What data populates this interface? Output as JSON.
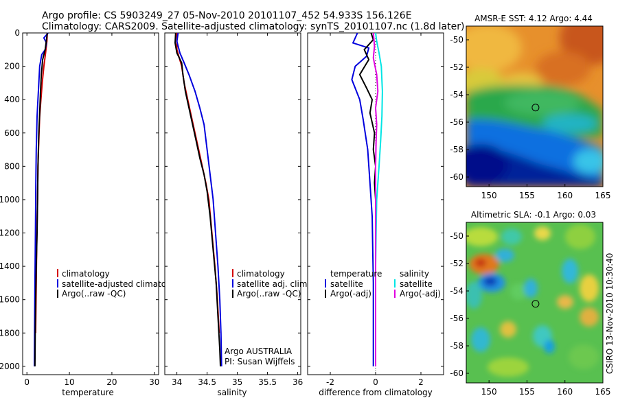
{
  "header": {
    "line1": "Argo profile: CS 5903249_27 05-Nov-2010 20101107_452 54.933S 156.126E",
    "line2": "Climatology: CARS2009. Satellite-adjusted climatology: synTS_20101107.nc (1.8d later)"
  },
  "side_label": "CSIRO 13-Nov-2010 10:30:40",
  "colors": {
    "climatology": "#d40000",
    "satellite": "#0000dd",
    "argo": "#000000",
    "sal_satellite": "#00e5e5",
    "sal_argo": "#e000e0"
  },
  "chart_data": [
    {
      "type": "line",
      "title": "",
      "xlabel": "temperature",
      "ylabel": "",
      "xlim": [
        -1,
        31
      ],
      "ylim": [
        2050,
        0
      ],
      "xticks": [
        "0",
        "10",
        "20",
        "30"
      ],
      "yticks": [
        "0",
        "200",
        "400",
        "600",
        "800",
        "1000",
        "1200",
        "1400",
        "1600",
        "1800",
        "2000"
      ],
      "legend": {
        "position": "bottom-right",
        "entries": [
          "climatology",
          "satellite-adjusted climatology",
          "Argo(..raw -QC)"
        ]
      },
      "series": [
        {
          "key": "climatology",
          "color": "#d40000",
          "points": [
            [
              4.8,
              0
            ],
            [
              4.7,
              50
            ],
            [
              4.4,
              120
            ],
            [
              4.0,
              200
            ],
            [
              3.6,
              300
            ],
            [
              3.3,
              400
            ],
            [
              3.0,
              500
            ],
            [
              2.8,
              650
            ],
            [
              2.6,
              800
            ],
            [
              2.5,
              1000
            ],
            [
              2.35,
              1200
            ],
            [
              2.25,
              1400
            ],
            [
              2.15,
              1600
            ],
            [
              2.05,
              1800
            ]
          ]
        },
        {
          "key": "satellite",
          "color": "#0000dd",
          "points": [
            [
              5.0,
              0
            ],
            [
              4.0,
              30
            ],
            [
              4.6,
              60
            ],
            [
              4.3,
              100
            ],
            [
              3.5,
              130
            ],
            [
              3.0,
              200
            ],
            [
              2.7,
              350
            ],
            [
              2.4,
              500
            ],
            [
              2.2,
              700
            ],
            [
              2.1,
              900
            ],
            [
              2.0,
              1200
            ],
            [
              1.9,
              1500
            ],
            [
              1.8,
              1800
            ],
            [
              1.75,
              2000
            ]
          ]
        },
        {
          "key": "argo",
          "color": "#000000",
          "points": [
            [
              4.8,
              0
            ],
            [
              4.6,
              40
            ],
            [
              4.3,
              100
            ],
            [
              3.7,
              160
            ],
            [
              3.4,
              250
            ],
            [
              3.2,
              350
            ],
            [
              3.0,
              480
            ],
            [
              2.8,
              600
            ],
            [
              2.6,
              800
            ],
            [
              2.5,
              1000
            ],
            [
              2.4,
              1200
            ],
            [
              2.2,
              1400
            ],
            [
              2.05,
              1600
            ],
            [
              1.95,
              1800
            ],
            [
              1.9,
              2000
            ]
          ]
        }
      ]
    },
    {
      "type": "line",
      "title": "",
      "xlabel": "salinity",
      "ylabel": "",
      "xlim": [
        33.8,
        36.05
      ],
      "ylim": [
        2050,
        0
      ],
      "xticks": [
        "34",
        "34.5",
        "35",
        "35.5",
        "36"
      ],
      "legend": {
        "position": "bottom-right",
        "entries": [
          "climatology",
          "satellite adj. clim.",
          "Argo(..raw -QC)"
        ]
      },
      "annotations": [
        "Argo AUSTRALIA",
        "PI: Susan Wijffels"
      ],
      "series": [
        {
          "key": "climatology",
          "color": "#d40000",
          "points": [
            [
              34.0,
              0
            ],
            [
              34.0,
              100
            ],
            [
              34.08,
              200
            ],
            [
              34.12,
              300
            ],
            [
              34.18,
              400
            ],
            [
              34.24,
              500
            ],
            [
              34.3,
              600
            ],
            [
              34.36,
              700
            ],
            [
              34.42,
              800
            ],
            [
              34.48,
              900
            ],
            [
              34.53,
              1000
            ],
            [
              34.58,
              1200
            ],
            [
              34.63,
              1400
            ],
            [
              34.67,
              1600
            ],
            [
              34.7,
              1800
            ]
          ]
        },
        {
          "key": "satellite",
          "color": "#0000dd",
          "points": [
            [
              34.02,
              0
            ],
            [
              34.0,
              50
            ],
            [
              34.05,
              120
            ],
            [
              34.12,
              180
            ],
            [
              34.2,
              250
            ],
            [
              34.3,
              350
            ],
            [
              34.38,
              450
            ],
            [
              34.45,
              550
            ],
            [
              34.5,
              700
            ],
            [
              34.55,
              850
            ],
            [
              34.6,
              1000
            ],
            [
              34.64,
              1200
            ],
            [
              34.68,
              1400
            ],
            [
              34.71,
              1600
            ],
            [
              34.73,
              1800
            ],
            [
              34.74,
              2000
            ]
          ]
        },
        {
          "key": "argo",
          "color": "#000000",
          "points": [
            [
              33.98,
              0
            ],
            [
              33.97,
              60
            ],
            [
              34.0,
              120
            ],
            [
              34.08,
              180
            ],
            [
              34.1,
              250
            ],
            [
              34.14,
              350
            ],
            [
              34.2,
              450
            ],
            [
              34.26,
              550
            ],
            [
              34.32,
              650
            ],
            [
              34.38,
              750
            ],
            [
              34.45,
              850
            ],
            [
              34.5,
              950
            ],
            [
              34.55,
              1100
            ],
            [
              34.6,
              1300
            ],
            [
              34.65,
              1500
            ],
            [
              34.68,
              1700
            ],
            [
              34.71,
              1900
            ],
            [
              34.72,
              2000
            ]
          ]
        }
      ]
    },
    {
      "type": "line",
      "title": "",
      "xlabel": "difference from climatology",
      "ylabel": "",
      "xlim": [
        -3,
        3
      ],
      "ylim": [
        2050,
        0
      ],
      "xticks": [
        "-2",
        "0",
        "2"
      ],
      "legend": {
        "position": "bottom",
        "groups": [
          {
            "title": "temperature",
            "entries": [
              "satellite",
              "Argo(-adj)"
            ]
          },
          {
            "title": "salinity",
            "entries": [
              "satellite",
              "Argo(-adj)"
            ]
          }
        ]
      },
      "series": [
        {
          "key": "temp_satellite",
          "color": "#0000dd",
          "points": [
            [
              -0.8,
              0
            ],
            [
              -1.0,
              60
            ],
            [
              -0.3,
              90
            ],
            [
              -0.4,
              140
            ],
            [
              -0.9,
              200
            ],
            [
              -1.05,
              280
            ],
            [
              -0.7,
              400
            ],
            [
              -0.55,
              520
            ],
            [
              -0.35,
              700
            ],
            [
              -0.25,
              900
            ],
            [
              -0.15,
              1100
            ],
            [
              -0.1,
              1500
            ],
            [
              -0.1,
              2000
            ]
          ]
        },
        {
          "key": "temp_argo",
          "color": "#000000",
          "points": [
            [
              -0.2,
              0
            ],
            [
              -0.1,
              40
            ],
            [
              -0.5,
              100
            ],
            [
              -0.3,
              160
            ],
            [
              -0.7,
              250
            ],
            [
              -0.4,
              330
            ],
            [
              -0.15,
              400
            ],
            [
              -0.25,
              480
            ],
            [
              -0.05,
              600
            ],
            [
              -0.1,
              700
            ],
            [
              0.0,
              800
            ],
            [
              -0.05,
              900
            ],
            [
              0.0,
              1000
            ]
          ]
        },
        {
          "key": "sal_satellite",
          "color": "#00e5e5",
          "points": [
            [
              0.0,
              0
            ],
            [
              0.05,
              50
            ],
            [
              0.15,
              120
            ],
            [
              0.25,
              200
            ],
            [
              0.3,
              350
            ],
            [
              0.28,
              500
            ],
            [
              0.22,
              650
            ],
            [
              0.15,
              800
            ],
            [
              0.1,
              900
            ],
            [
              0.05,
              1000
            ],
            [
              0.02,
              1200
            ],
            [
              0.0,
              1400
            ],
            [
              0.0,
              2000
            ]
          ]
        },
        {
          "key": "sal_argo",
          "color": "#e000e0",
          "points": [
            [
              -0.1,
              0
            ],
            [
              -0.05,
              80
            ],
            [
              -0.1,
              150
            ],
            [
              0.05,
              250
            ],
            [
              0.1,
              350
            ],
            [
              0.0,
              450
            ],
            [
              0.05,
              550
            ],
            [
              0.02,
              650
            ],
            [
              0.0,
              800
            ],
            [
              0.0,
              1000
            ],
            [
              0.0,
              1300
            ],
            [
              0.0,
              1600
            ],
            [
              0.0,
              2000
            ]
          ]
        }
      ]
    },
    {
      "type": "heatmap",
      "title": "AMSR-E SST: 4.12 Argo: 4.44",
      "xlim": [
        147,
        165
      ],
      "ylim": [
        -60.7,
        -49
      ],
      "xticks": [
        "150",
        "155",
        "160",
        "165"
      ],
      "yticks": [
        "-50",
        "-52",
        "-54",
        "-56",
        "-58",
        "-60"
      ],
      "marker": {
        "lon": 156.126,
        "lat": -54.933
      }
    },
    {
      "type": "heatmap",
      "title": "Altimetric SLA: -0.1 Argo: 0.03",
      "xlim": [
        147,
        165
      ],
      "ylim": [
        -60.7,
        -49
      ],
      "xticks": [
        "150",
        "155",
        "160",
        "165"
      ],
      "yticks": [
        "-50",
        "-52",
        "-54",
        "-56",
        "-58",
        "-60"
      ],
      "marker": {
        "lon": 156.126,
        "lat": -54.933
      }
    }
  ]
}
